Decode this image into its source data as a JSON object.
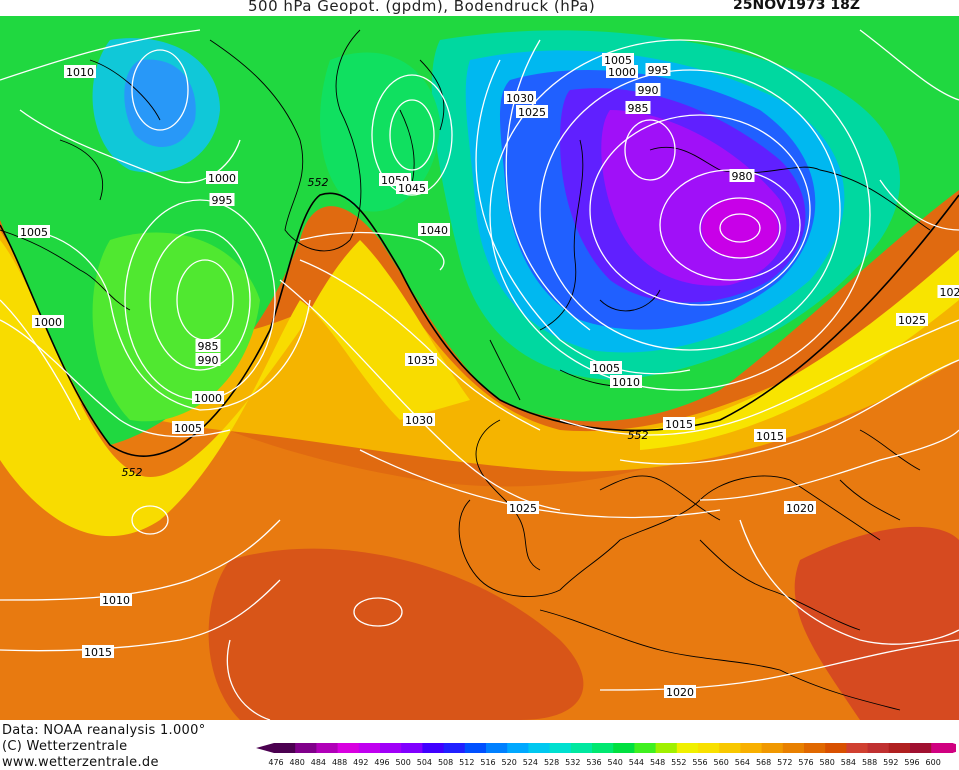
{
  "title": "500 hPa Geopot. (gpdm), Bodendruck (hPa)",
  "date": "25NOV1973 18Z",
  "credits": [
    "Data: NOAA reanalysis 1.000°",
    "(C) Wetterzentrale",
    "www.wetterzentrale.de"
  ],
  "legend": {
    "values": [
      "476",
      "480",
      "484",
      "488",
      "492",
      "496",
      "500",
      "504",
      "508",
      "512",
      "516",
      "520",
      "524",
      "528",
      "532",
      "536",
      "540",
      "544",
      "548",
      "552",
      "556",
      "560",
      "564",
      "568",
      "572",
      "576",
      "580",
      "584",
      "588",
      "592",
      "596",
      "600"
    ],
    "colors": [
      "#4b0050",
      "#80008a",
      "#b000b8",
      "#d800e0",
      "#c000f0",
      "#a000f8",
      "#8000ff",
      "#4000ff",
      "#2020ff",
      "#0050ff",
      "#0080ff",
      "#00a8ff",
      "#00c8f0",
      "#00e0d0",
      "#00e8a0",
      "#00e870",
      "#00e040",
      "#40f020",
      "#a0f000",
      "#f0f000",
      "#f8e000",
      "#f8c800",
      "#f8b000",
      "#f09800",
      "#e88000",
      "#e06800",
      "#d85000",
      "#d04030",
      "#c03030",
      "#b02020",
      "#a01030",
      "#d00080"
    ]
  },
  "isobar_labels": [
    "1010",
    "1000",
    "995",
    "1005",
    "1000",
    "985",
    "990",
    "1000",
    "1005",
    "552",
    "1050",
    "1045",
    "1040",
    "1035",
    "1030",
    "1030",
    "1025",
    "1005",
    "1000",
    "995",
    "990",
    "985",
    "980",
    "1005",
    "1010",
    "552",
    "1015",
    "1015",
    "1025",
    "102",
    "1020",
    "1025",
    "1010",
    "1015",
    "1020",
    "552"
  ]
}
